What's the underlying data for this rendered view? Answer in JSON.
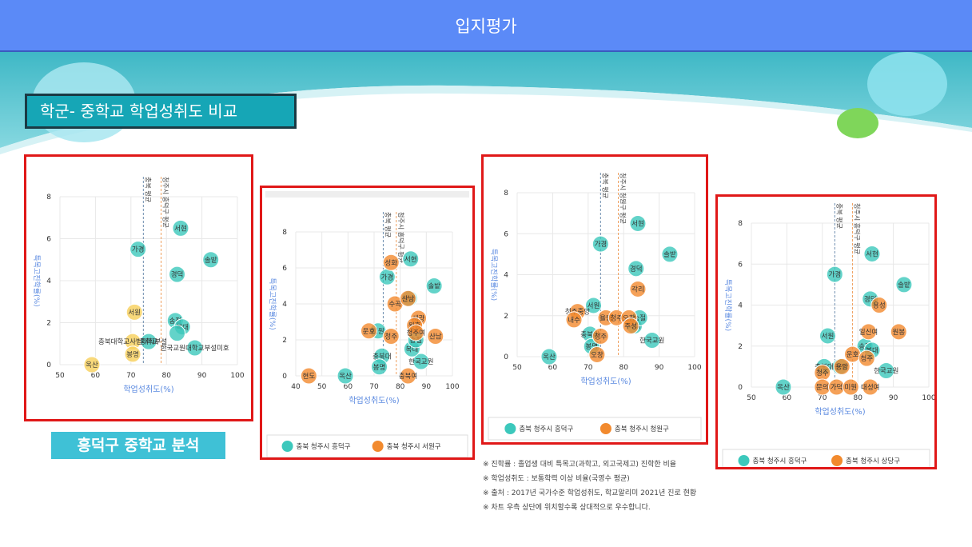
{
  "header": {
    "title": "입지평가"
  },
  "section_title": "학군- 중학교 학업성취도 비교",
  "sub_badge": "흥덕구 중학교 분석",
  "notes": [
    "※ 진학률 : 졸업생 대비 특목고(과학고, 외고국제고) 진학한 비율",
    "※ 학업성취도 : 보통학력 이상 비율(국영수 평균)",
    "※ 출처 : 2017년 국가수준 학업성취도, 학교알리미 2021년 진로 현황",
    "※ 차트 우측 상단에 위치할수록 상대적으로 우수합니다."
  ],
  "colors": {
    "teal": "#3cc8bc",
    "orange": "#f28a2e",
    "yellow": "#f7cf5a",
    "header": "#5b8af7",
    "frame": "#e01818"
  },
  "chart_data": [
    {
      "type": "scatter",
      "xlabel": "학업성취도(%)",
      "ylabel": "특목고진학률(%)",
      "xlim": [
        50,
        100
      ],
      "ylim": [
        0,
        8
      ],
      "xticks": [
        50,
        60,
        70,
        80,
        90,
        100
      ],
      "yticks": [
        0,
        2,
        4,
        6,
        8
      ],
      "ref_lines": [
        {
          "x": 73.5,
          "label": "충북 평균"
        },
        {
          "x": 78.5,
          "label": "청주시 흥덕구 평균"
        }
      ],
      "legend": [],
      "series": [
        {
          "name": "",
          "color": "teal",
          "points": [
            {
              "label": "서현",
              "x": 84,
              "y": 6.5
            },
            {
              "label": "가경",
              "x": 72,
              "y": 5.5
            },
            {
              "label": "솔밭",
              "x": 92.5,
              "y": 5.0
            },
            {
              "label": "경덕",
              "x": 83,
              "y": 4.3
            },
            {
              "label": "송절",
              "x": 82.5,
              "y": 2.1
            },
            {
              "label": "복대",
              "x": 84.5,
              "y": 1.8
            },
            {
              "label": "한국교원대학교부설미호",
              "x": 88,
              "y": 0.8
            },
            {
              "label": "중학교",
              "x": 75,
              "y": 1.1
            },
            {
              "label": "",
              "x": 83,
              "y": 1.5
            }
          ]
        },
        {
          "name": "",
          "color": "yellow",
          "points": [
            {
              "label": "서원",
              "x": 71,
              "y": 2.5
            },
            {
              "label": "충북대학교사범대학부설",
              "x": 70.5,
              "y": 1.1
            },
            {
              "label": "봉명",
              "x": 70.5,
              "y": 0.5
            },
            {
              "label": "옥산",
              "x": 59,
              "y": 0.0
            }
          ]
        }
      ]
    },
    {
      "type": "scatter",
      "xlabel": "학업성취도(%)",
      "ylabel": "특목고진학률(%)",
      "xlim": [
        40,
        100
      ],
      "ylim": [
        0,
        8
      ],
      "xticks": [
        40,
        50,
        60,
        70,
        80,
        90,
        100
      ],
      "yticks": [
        0,
        2,
        4,
        6,
        8
      ],
      "ref_lines": [
        {
          "x": 73.5,
          "label": "충북 평균"
        },
        {
          "x": 78.5,
          "label": "청주시 흥덕구 평균"
        }
      ],
      "legend": [
        "충북 청주시 흥덕구",
        "충북 청주시 서원구"
      ],
      "series": [
        {
          "name": "충북 청주시 흥덕구",
          "color": "teal",
          "points": [
            {
              "label": "서현",
              "x": 84,
              "y": 6.5
            },
            {
              "label": "가경",
              "x": 75,
              "y": 5.5
            },
            {
              "label": "솔밭",
              "x": 93,
              "y": 5.0
            },
            {
              "label": "경덕",
              "x": 83.5,
              "y": 4.3
            },
            {
              "label": "서원",
              "x": 71.5,
              "y": 2.5
            },
            {
              "label": "충북대",
              "x": 73,
              "y": 1.1
            },
            {
              "label": "봉명",
              "x": 72,
              "y": 0.5
            },
            {
              "label": "옥산",
              "x": 59,
              "y": 0.0
            },
            {
              "label": "한국교원",
              "x": 88,
              "y": 0.8
            },
            {
              "label": "복대",
              "x": 84.5,
              "y": 1.5
            },
            {
              "label": "송절",
              "x": 86,
              "y": 2.0
            }
          ]
        },
        {
          "name": "충북 청주시 서원구",
          "color": "orange",
          "points": [
            {
              "label": "성화",
              "x": 76.5,
              "y": 6.3
            },
            {
              "label": "수곡",
              "x": 78,
              "y": 4.0
            },
            {
              "label": "산남",
              "x": 83,
              "y": 4.3
            },
            {
              "label": "세광",
              "x": 87,
              "y": 3.2
            },
            {
              "label": "원흥",
              "x": 85.5,
              "y": 2.8
            },
            {
              "label": "운호",
              "x": 68,
              "y": 2.5
            },
            {
              "label": "청주여",
              "x": 86,
              "y": 2.4
            },
            {
              "label": "산남",
              "x": 93.5,
              "y": 2.2
            },
            {
              "label": "청주",
              "x": 76.5,
              "y": 2.2
            },
            {
              "label": "현도",
              "x": 45,
              "y": 0.0
            },
            {
              "label": "충북여",
              "x": 83,
              "y": 0.0
            }
          ]
        }
      ]
    },
    {
      "type": "scatter",
      "xlabel": "학업성취도(%)",
      "ylabel": "특목고진학률(%)",
      "xlim": [
        50,
        100
      ],
      "ylim": [
        0,
        8
      ],
      "xticks": [
        50,
        60,
        70,
        80,
        90,
        100
      ],
      "yticks": [
        0,
        2,
        4,
        6,
        8
      ],
      "ref_lines": [
        {
          "x": 73.5,
          "label": "충북 평균"
        },
        {
          "x": 78.5,
          "label": "청주시 청원구 평균"
        }
      ],
      "legend": [
        "충북 청주시 흥덕구",
        "충북 청주시 청원구"
      ],
      "series": [
        {
          "name": "충북 청주시 흥덕구",
          "color": "teal",
          "points": [
            {
              "label": "서현",
              "x": 84,
              "y": 6.5
            },
            {
              "label": "가경",
              "x": 73.5,
              "y": 5.5
            },
            {
              "label": "솔밭",
              "x": 93,
              "y": 5.0
            },
            {
              "label": "경덕",
              "x": 83.5,
              "y": 4.3
            },
            {
              "label": "서원",
              "x": 71.5,
              "y": 2.5
            },
            {
              "label": "충북대",
              "x": 70.5,
              "y": 1.1
            },
            {
              "label": "봉명",
              "x": 71,
              "y": 0.5
            },
            {
              "label": "옥산",
              "x": 59,
              "y": 0.0
            },
            {
              "label": "한국교원",
              "x": 88,
              "y": 0.8
            },
            {
              "label": "복대",
              "x": 83,
              "y": 1.5
            },
            {
              "label": "송절",
              "x": 84.5,
              "y": 1.9
            }
          ]
        },
        {
          "name": "충북 청주시 청원구",
          "color": "orange",
          "points": [
            {
              "label": "각리",
              "x": 84,
              "y": 3.3
            },
            {
              "label": "청주중앙",
              "x": 67,
              "y": 2.2
            },
            {
              "label": "내수",
              "x": 66,
              "y": 1.8
            },
            {
              "label": "율량",
              "x": 75,
              "y": 1.9
            },
            {
              "label": "청주",
              "x": 78,
              "y": 1.9
            },
            {
              "label": "오창",
              "x": 81.5,
              "y": 1.9
            },
            {
              "label": "주성",
              "x": 82,
              "y": 1.5
            },
            {
              "label": "청주",
              "x": 73.5,
              "y": 1.0
            },
            {
              "label": "오창",
              "x": 72.5,
              "y": 0.1
            }
          ]
        }
      ]
    },
    {
      "type": "scatter",
      "xlabel": "학업성취도(%)",
      "ylabel": "특목고진학률(%)",
      "xlim": [
        50,
        100
      ],
      "ylim": [
        0,
        8
      ],
      "xticks": [
        50,
        60,
        70,
        80,
        90,
        100
      ],
      "yticks": [
        0,
        2,
        4,
        6,
        8
      ],
      "ref_lines": [
        {
          "x": 73.5,
          "label": "충북 평균"
        },
        {
          "x": 78.5,
          "label": "청주시 흥덕구 평균"
        }
      ],
      "legend": [
        "충북 청주시 흥덕구",
        "충북 청주시 상당구"
      ],
      "series": [
        {
          "name": "충북 청주시 흥덕구",
          "color": "teal",
          "points": [
            {
              "label": "서현",
              "x": 84,
              "y": 6.5
            },
            {
              "label": "가경",
              "x": 73.5,
              "y": 5.5
            },
            {
              "label": "솔밭",
              "x": 93,
              "y": 5.0
            },
            {
              "label": "경덕",
              "x": 83.5,
              "y": 4.3
            },
            {
              "label": "서원",
              "x": 71.5,
              "y": 2.5
            },
            {
              "label": "송절",
              "x": 82,
              "y": 2.0
            },
            {
              "label": "복대",
              "x": 84,
              "y": 1.8
            },
            {
              "label": "봉명",
              "x": 75,
              "y": 1.0
            },
            {
              "label": "한국교원",
              "x": 88,
              "y": 0.8
            },
            {
              "label": "옥산",
              "x": 59,
              "y": 0.0
            },
            {
              "label": "충북대",
              "x": 70.5,
              "y": 1.0
            }
          ]
        },
        {
          "name": "충북 청주시 상당구",
          "color": "orange",
          "points": [
            {
              "label": "용성",
              "x": 86,
              "y": 4.0
            },
            {
              "label": "일신여",
              "x": 83,
              "y": 2.7
            },
            {
              "label": "원봉",
              "x": 91.5,
              "y": 2.7
            },
            {
              "label": "운호",
              "x": 78.5,
              "y": 1.6
            },
            {
              "label": "청주",
              "x": 82.5,
              "y": 1.4
            },
            {
              "label": "용암",
              "x": 75.5,
              "y": 1.0
            },
            {
              "label": "청주",
              "x": 70,
              "y": 0.7
            },
            {
              "label": "문의",
              "x": 70,
              "y": 0.0
            },
            {
              "label": "가덕",
              "x": 74,
              "y": 0.0
            },
            {
              "label": "미원",
              "x": 78,
              "y": 0.0
            },
            {
              "label": "대성여",
              "x": 83.5,
              "y": 0.0
            }
          ]
        }
      ]
    }
  ]
}
